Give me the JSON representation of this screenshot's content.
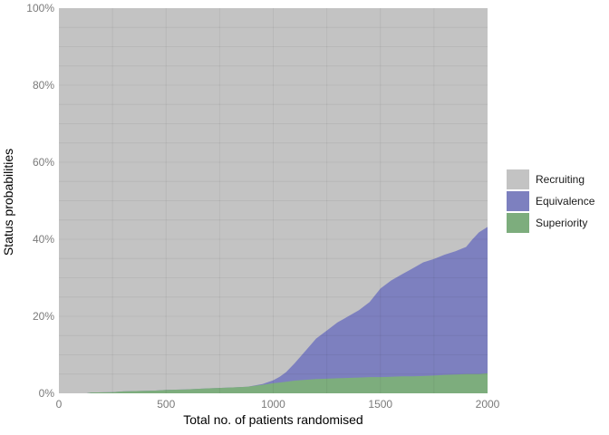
{
  "chart_data": {
    "type": "area",
    "stacked": true,
    "title": "",
    "xlabel": "Total no. of patients randomised",
    "ylabel": "Status probabilities",
    "xlim": [
      0,
      2000
    ],
    "ylim": [
      0,
      100
    ],
    "x_ticks": {
      "values": [
        0,
        500,
        1000,
        1500,
        2000
      ],
      "labels": [
        "0",
        "500",
        "1000",
        "1500",
        "2000"
      ]
    },
    "y_ticks": {
      "values": [
        0,
        20,
        40,
        60,
        80,
        100
      ],
      "labels": [
        "0%",
        "20%",
        "40%",
        "60%",
        "80%",
        "100%"
      ]
    },
    "grid": {
      "x_step": 250,
      "y_step": 5
    },
    "legend_position": "right",
    "legend": [
      {
        "label": "Recruiting",
        "color_key": "recruiting"
      },
      {
        "label": "Equivalence",
        "color_key": "equivalence"
      },
      {
        "label": "Superiority",
        "color_key": "superiority"
      }
    ],
    "colors": {
      "recruiting": "#c3c3c3",
      "equivalence": "#7d80bf",
      "superiority": "#7dad7d",
      "grid": "rgba(0,0,0,0.055)",
      "tick_label": "#7a7a7a",
      "axis_title": "#000000",
      "background": "#ffffff"
    },
    "x": [
      0,
      130,
      150,
      250,
      300,
      380,
      450,
      500,
      590,
      700,
      800,
      880,
      950,
      1000,
      1030,
      1060,
      1100,
      1150,
      1200,
      1250,
      1300,
      1350,
      1400,
      1450,
      1500,
      1550,
      1600,
      1650,
      1700,
      1750,
      1800,
      1850,
      1900,
      1930,
      1960,
      2000
    ],
    "series": [
      {
        "name": "Superiority",
        "stack_order": 1,
        "values": [
          0,
          0,
          0.2,
          0.3,
          0.5,
          0.6,
          0.7,
          0.9,
          1.0,
          1.3,
          1.5,
          1.7,
          2.2,
          2.6,
          2.8,
          3.0,
          3.3,
          3.5,
          3.7,
          3.8,
          3.9,
          4.0,
          4.1,
          4.2,
          4.2,
          4.3,
          4.4,
          4.4,
          4.5,
          4.6,
          4.8,
          4.9,
          5.0,
          5.0,
          5.0,
          5.2
        ]
      },
      {
        "name": "Equivalence",
        "stack_order": 2,
        "values": [
          0,
          0,
          0,
          0,
          0,
          0,
          0,
          0,
          0,
          0,
          0,
          0,
          0.2,
          0.8,
          1.5,
          2.5,
          4.5,
          7.5,
          10.5,
          12.5,
          14.5,
          16.0,
          17.5,
          19.5,
          23.0,
          25.0,
          26.5,
          28.0,
          29.5,
          30.3,
          31.2,
          32.0,
          33.0,
          35.0,
          36.8,
          38.0
        ]
      },
      {
        "name": "Recruiting",
        "stack_order": 3,
        "fills_remainder_to": 100
      }
    ]
  }
}
